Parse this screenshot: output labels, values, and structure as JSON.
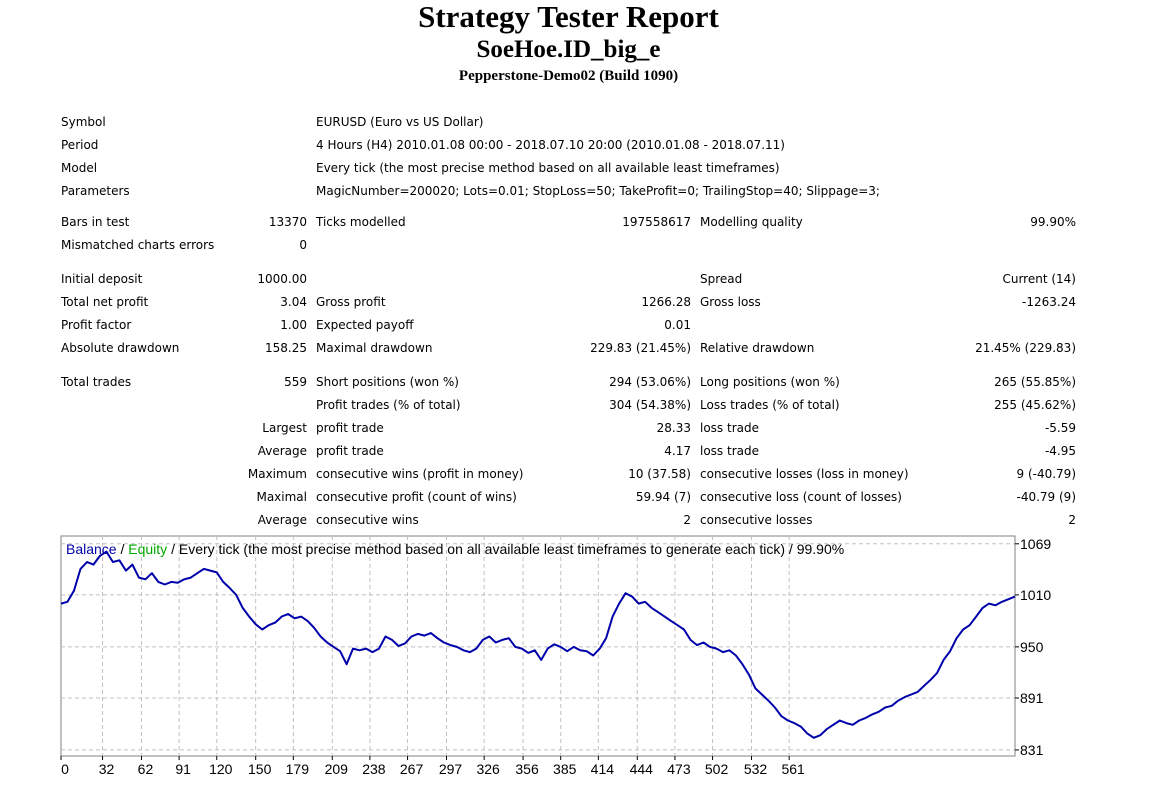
{
  "report": {
    "title": "Strategy Tester Report",
    "expert": "SoeHoe.ID_big_e",
    "server": "Pepperstone-Demo02 (Build 1090)"
  },
  "info": {
    "symbol_label": "Symbol",
    "symbol": "EURUSD (Euro vs US Dollar)",
    "period_label": "Period",
    "period": "4 Hours (H4) 2010.01.08 00:00 - 2018.07.10 20:00 (2010.01.08 - 2018.07.11)",
    "model_label": "Model",
    "model": "Every tick (the most precise method based on all available least timeframes)",
    "parameters_label": "Parameters",
    "parameters": "MagicNumber=200020; Lots=0.01; StopLoss=50; TakeProfit=0; TrailingStop=40; Slippage=3;"
  },
  "quality": {
    "bars_label": "Bars in test",
    "bars": "13370",
    "ticks_label": "Ticks modelled",
    "ticks": "197558617",
    "modelling_label": "Modelling quality",
    "modelling": "99.90%",
    "mismatch_label": "Mismatched charts errors",
    "mismatch": "0"
  },
  "results": {
    "initial_deposit_label": "Initial deposit",
    "initial_deposit": "1000.00",
    "spread_label": "Spread",
    "spread": "Current (14)",
    "net_profit_label": "Total net profit",
    "net_profit": "3.04",
    "gross_profit_label": "Gross profit",
    "gross_profit": "1266.28",
    "gross_loss_label": "Gross loss",
    "gross_loss": "-1263.24",
    "profit_factor_label": "Profit factor",
    "profit_factor": "1.00",
    "expected_payoff_label": "Expected payoff",
    "expected_payoff": "0.01",
    "abs_dd_label": "Absolute drawdown",
    "abs_dd": "158.25",
    "max_dd_label": "Maximal drawdown",
    "max_dd": "229.83 (21.45%)",
    "rel_dd_label": "Relative drawdown",
    "rel_dd": "21.45% (229.83)"
  },
  "trades": {
    "total_label": "Total trades",
    "total": "559",
    "short_label": "Short positions (won %)",
    "short": "294 (53.06%)",
    "long_label": "Long positions (won %)",
    "long": "265 (55.85%)",
    "profit_trades_label": "Profit trades (% of total)",
    "profit_trades": "304 (54.38%)",
    "loss_trades_label": "Loss trades (% of total)",
    "loss_trades": "255 (45.62%)",
    "largest_label": "Largest",
    "largest_profit_label": "profit trade",
    "largest_profit": "28.33",
    "largest_loss_label": "loss trade",
    "largest_loss": "-5.59",
    "average_label": "Average",
    "average_profit_label": "profit trade",
    "average_profit": "4.17",
    "average_loss_label": "loss trade",
    "average_loss": "-4.95",
    "maximum_label": "Maximum",
    "max_wins_label": "consecutive wins (profit in money)",
    "max_wins": "10 (37.58)",
    "max_losses_label": "consecutive losses (loss in money)",
    "max_losses": "9 (-40.79)",
    "maximal_label": "Maximal",
    "maximal_profit_label": "consecutive profit (count of wins)",
    "maximal_profit": "59.94 (7)",
    "maximal_loss_label": "consecutive loss (count of losses)",
    "maximal_loss": "-40.79 (9)",
    "avg_consec_label": "Average",
    "avg_consec_wins_label": "consecutive wins",
    "avg_consec_wins": "2",
    "avg_consec_losses_label": "consecutive losses",
    "avg_consec_losses": "2"
  },
  "chart_data": {
    "type": "line",
    "legend": {
      "balance": "Balance",
      "sep1": " / ",
      "equity": "Equity",
      "rest": " / Every tick (the most precise method based on all available least timeframes to generate each tick) / 99.90%"
    },
    "series": [
      {
        "name": "Balance",
        "color": "#0000aa",
        "points": [
          [
            0,
            1000
          ],
          [
            5,
            1002
          ],
          [
            10,
            1015
          ],
          [
            15,
            1040
          ],
          [
            20,
            1048
          ],
          [
            25,
            1045
          ],
          [
            30,
            1055
          ],
          [
            35,
            1060
          ],
          [
            40,
            1048
          ],
          [
            45,
            1050
          ],
          [
            50,
            1038
          ],
          [
            55,
            1045
          ],
          [
            60,
            1030
          ],
          [
            65,
            1028
          ],
          [
            70,
            1035
          ],
          [
            75,
            1025
          ],
          [
            80,
            1022
          ],
          [
            85,
            1025
          ],
          [
            90,
            1024
          ],
          [
            95,
            1028
          ],
          [
            100,
            1030
          ],
          [
            105,
            1035
          ],
          [
            110,
            1040
          ],
          [
            115,
            1038
          ],
          [
            120,
            1036
          ],
          [
            125,
            1025
          ],
          [
            130,
            1018
          ],
          [
            135,
            1010
          ],
          [
            140,
            995
          ],
          [
            145,
            985
          ],
          [
            150,
            976
          ],
          [
            155,
            970
          ],
          [
            160,
            975
          ],
          [
            165,
            978
          ],
          [
            170,
            985
          ],
          [
            175,
            988
          ],
          [
            180,
            983
          ],
          [
            185,
            985
          ],
          [
            190,
            980
          ],
          [
            195,
            972
          ],
          [
            200,
            962
          ],
          [
            205,
            955
          ],
          [
            210,
            950
          ],
          [
            215,
            945
          ],
          [
            220,
            930
          ],
          [
            225,
            948
          ],
          [
            230,
            946
          ],
          [
            235,
            948
          ],
          [
            240,
            944
          ],
          [
            245,
            948
          ],
          [
            250,
            962
          ],
          [
            255,
            958
          ],
          [
            260,
            951
          ],
          [
            265,
            954
          ],
          [
            270,
            962
          ],
          [
            275,
            965
          ],
          [
            280,
            963
          ],
          [
            285,
            966
          ],
          [
            290,
            960
          ],
          [
            295,
            955
          ],
          [
            300,
            952
          ],
          [
            305,
            950
          ],
          [
            310,
            946
          ],
          [
            315,
            944
          ],
          [
            320,
            948
          ],
          [
            325,
            958
          ],
          [
            330,
            962
          ],
          [
            335,
            955
          ],
          [
            340,
            958
          ],
          [
            345,
            960
          ],
          [
            350,
            950
          ],
          [
            355,
            948
          ],
          [
            360,
            943
          ],
          [
            365,
            946
          ],
          [
            370,
            935
          ],
          [
            375,
            948
          ],
          [
            380,
            953
          ],
          [
            385,
            950
          ],
          [
            390,
            945
          ],
          [
            395,
            950
          ],
          [
            400,
            946
          ],
          [
            405,
            945
          ],
          [
            410,
            940
          ],
          [
            415,
            948
          ],
          [
            420,
            960
          ],
          [
            425,
            985
          ],
          [
            430,
            1000
          ],
          [
            435,
            1012
          ],
          [
            440,
            1008
          ],
          [
            445,
            1000
          ],
          [
            450,
            1002
          ],
          [
            455,
            995
          ],
          [
            460,
            990
          ],
          [
            465,
            985
          ],
          [
            470,
            980
          ],
          [
            475,
            975
          ],
          [
            480,
            970
          ],
          [
            485,
            958
          ],
          [
            490,
            952
          ],
          [
            495,
            955
          ],
          [
            500,
            950
          ],
          [
            505,
            948
          ],
          [
            510,
            944
          ],
          [
            515,
            946
          ],
          [
            520,
            940
          ],
          [
            525,
            930
          ],
          [
            530,
            918
          ],
          [
            535,
            902
          ],
          [
            540,
            895
          ],
          [
            545,
            888
          ],
          [
            550,
            880
          ],
          [
            555,
            870
          ],
          [
            560,
            865
          ],
          [
            565,
            862
          ],
          [
            570,
            858
          ],
          [
            575,
            850
          ],
          [
            580,
            845
          ],
          [
            585,
            848
          ],
          [
            590,
            855
          ],
          [
            595,
            860
          ],
          [
            600,
            865
          ],
          [
            605,
            862
          ],
          [
            610,
            860
          ],
          [
            615,
            865
          ],
          [
            620,
            868
          ],
          [
            625,
            872
          ],
          [
            630,
            875
          ],
          [
            635,
            880
          ],
          [
            640,
            882
          ],
          [
            645,
            888
          ],
          [
            650,
            892
          ],
          [
            655,
            895
          ],
          [
            660,
            898
          ],
          [
            665,
            905
          ],
          [
            670,
            912
          ],
          [
            675,
            920
          ],
          [
            680,
            935
          ],
          [
            685,
            945
          ],
          [
            690,
            960
          ],
          [
            695,
            970
          ],
          [
            700,
            975
          ],
          [
            705,
            985
          ],
          [
            710,
            995
          ],
          [
            715,
            1000
          ],
          [
            720,
            998
          ],
          [
            725,
            1002
          ],
          [
            730,
            1005
          ],
          [
            735,
            1008
          ]
        ]
      },
      {
        "name": "Equity",
        "color": "#00aa00",
        "points": []
      }
    ],
    "y_ticks": [
      "1069",
      "1010",
      "950",
      "891",
      "831"
    ],
    "x_ticks": [
      "0",
      "32",
      "62",
      "91",
      "120",
      "150",
      "179",
      "209",
      "238",
      "267",
      "297",
      "326",
      "356",
      "385",
      "414",
      "444",
      "473",
      "502",
      "532",
      "561"
    ],
    "xlim": [
      0,
      735
    ],
    "ylim": [
      824,
      1078
    ],
    "grid": true
  }
}
